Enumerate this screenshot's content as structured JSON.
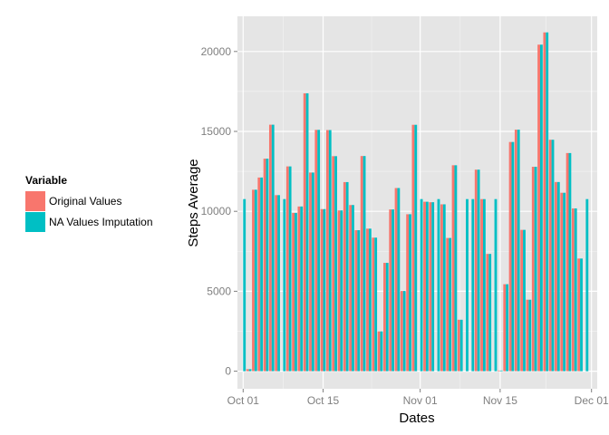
{
  "chart_data": {
    "type": "bar",
    "xlabel": "Dates",
    "ylabel": "Steps Average",
    "x_ticks": [
      "Oct 01",
      "Oct 15",
      "Nov 01",
      "Nov 15",
      "Dec 01"
    ],
    "x_tick_dates": [
      "2012-10-01",
      "2012-10-15",
      "2012-11-01",
      "2012-11-15",
      "2012-12-01"
    ],
    "y_ticks": [
      0,
      5000,
      10000,
      15000,
      20000
    ],
    "ylim": [
      -1100,
      22200
    ],
    "xlim": [
      "2012-09-30",
      "2012-12-02"
    ],
    "grid": true,
    "legend": {
      "title": "Variable",
      "position": "left",
      "entries": [
        {
          "name": "Original Values",
          "color": "#F8766D"
        },
        {
          "name": "NA Values Imputation",
          "color": "#00BFC4"
        }
      ]
    },
    "dates": [
      "2012-10-01",
      "2012-10-02",
      "2012-10-03",
      "2012-10-04",
      "2012-10-05",
      "2012-10-06",
      "2012-10-07",
      "2012-10-08",
      "2012-10-09",
      "2012-10-10",
      "2012-10-11",
      "2012-10-12",
      "2012-10-13",
      "2012-10-14",
      "2012-10-15",
      "2012-10-16",
      "2012-10-17",
      "2012-10-18",
      "2012-10-19",
      "2012-10-20",
      "2012-10-21",
      "2012-10-22",
      "2012-10-23",
      "2012-10-24",
      "2012-10-25",
      "2012-10-26",
      "2012-10-27",
      "2012-10-28",
      "2012-10-29",
      "2012-10-30",
      "2012-10-31",
      "2012-11-01",
      "2012-11-02",
      "2012-11-03",
      "2012-11-04",
      "2012-11-05",
      "2012-11-06",
      "2012-11-07",
      "2012-11-08",
      "2012-11-09",
      "2012-11-10",
      "2012-11-11",
      "2012-11-12",
      "2012-11-13",
      "2012-11-14",
      "2012-11-15",
      "2012-11-16",
      "2012-11-17",
      "2012-11-18",
      "2012-11-19",
      "2012-11-20",
      "2012-11-21",
      "2012-11-22",
      "2012-11-23",
      "2012-11-24",
      "2012-11-25",
      "2012-11-26",
      "2012-11-27",
      "2012-11-28",
      "2012-11-29",
      "2012-11-30"
    ],
    "series": [
      {
        "name": "Original Values",
        "values": [
          0,
          126,
          11352,
          12116,
          13294,
          15420,
          11015,
          0,
          12811,
          9900,
          10304,
          17382,
          12426,
          15098,
          10139,
          15084,
          13452,
          10056,
          11829,
          10395,
          8821,
          13460,
          8918,
          8355,
          2492,
          6778,
          10119,
          11458,
          5018,
          9819,
          15414,
          0,
          10600,
          10571,
          0,
          10439,
          8334,
          12883,
          3219,
          0,
          0,
          12608,
          10765,
          7336,
          0,
          41,
          5441,
          14339,
          15110,
          8841,
          4472,
          12787,
          20427,
          21194,
          14478,
          11834,
          11162,
          13646,
          10183,
          7047,
          0
        ]
      },
      {
        "name": "NA Values Imputation",
        "values": [
          10766,
          126,
          11352,
          12116,
          13294,
          15420,
          11015,
          10766,
          12811,
          9900,
          10304,
          17382,
          12426,
          15098,
          10139,
          15084,
          13452,
          10056,
          11829,
          10395,
          8821,
          13460,
          8918,
          8355,
          2492,
          6778,
          10119,
          11458,
          5018,
          9819,
          15414,
          10766,
          10600,
          10571,
          10766,
          10439,
          8334,
          12883,
          3219,
          10766,
          10766,
          12608,
          10765,
          7336,
          10766,
          41,
          5441,
          14339,
          15110,
          8841,
          4472,
          12787,
          20427,
          21194,
          14478,
          11834,
          11162,
          13646,
          10183,
          7047,
          10766
        ]
      }
    ]
  }
}
